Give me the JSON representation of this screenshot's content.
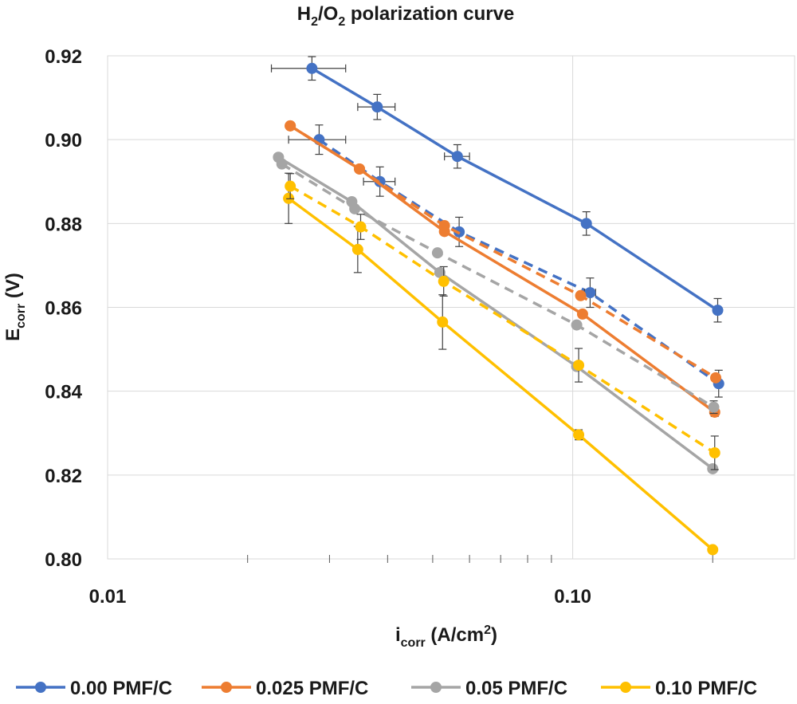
{
  "chart_data": {
    "type": "scatter",
    "title_main": "H",
    "title_sub1": "2",
    "title_mid": "/O",
    "title_sub2": "2",
    "title_rest": " polarization curve",
    "xlabel_main": "i",
    "xlabel_sub": "corr",
    "xlabel_rest": " (A/cm",
    "xlabel_sup": "2",
    "xlabel_end": ")",
    "ylabel_main": "E",
    "ylabel_sub": "corr",
    "ylabel_rest": " (V)",
    "x_scale": "log",
    "xlim": [
      0.01,
      0.3
    ],
    "ylim": [
      0.8,
      0.92
    ],
    "x_ticks": [
      {
        "value": 0.01,
        "label": "0.01"
      },
      {
        "value": 0.1,
        "label": "0.10"
      }
    ],
    "y_ticks": [
      {
        "value": 0.8,
        "label": "0.80"
      },
      {
        "value": 0.82,
        "label": "0.82"
      },
      {
        "value": 0.84,
        "label": "0.84"
      },
      {
        "value": 0.86,
        "label": "0.86"
      },
      {
        "value": 0.88,
        "label": "0.88"
      },
      {
        "value": 0.9,
        "label": "0.90"
      },
      {
        "value": 0.92,
        "label": "0.92"
      }
    ],
    "grid": "major",
    "legend_position": "bottom",
    "series": [
      {
        "name": "0.00 PMF/C",
        "color": "#4472C4",
        "style": "solid",
        "points": [
          {
            "x": 0.0275,
            "y": 0.917,
            "xerr": 0.005,
            "yerr": 0.0028
          },
          {
            "x": 0.038,
            "y": 0.9078,
            "xerr": 0.0035,
            "yerr": 0.003
          },
          {
            "x": 0.0565,
            "y": 0.896,
            "xerr": 0.0035,
            "yerr": 0.0028
          },
          {
            "x": 0.107,
            "y": 0.88,
            "xerr": 0,
            "yerr": 0.0028
          },
          {
            "x": 0.205,
            "y": 0.8593,
            "xerr": 0,
            "yerr": 0.0028
          }
        ]
      },
      {
        "name": "0.00 PMF/C",
        "color": "#4472C4",
        "style": "dashed",
        "points": [
          {
            "x": 0.0285,
            "y": 0.9,
            "xerr": 0.004,
            "yerr": 0.0035
          },
          {
            "x": 0.0385,
            "y": 0.89,
            "xerr": 0.003,
            "yerr": 0.0035
          },
          {
            "x": 0.057,
            "y": 0.878,
            "xerr": 0,
            "yerr": 0.0035
          },
          {
            "x": 0.109,
            "y": 0.8635,
            "xerr": 0.003,
            "yerr": 0.0035
          },
          {
            "x": 0.206,
            "y": 0.8418,
            "xerr": 0,
            "yerr": 0.0032
          }
        ]
      },
      {
        "name": "0.025 PMF/C",
        "color": "#ED7D31",
        "style": "solid",
        "points": [
          {
            "x": 0.0247,
            "y": 0.9033,
            "xerr": 0,
            "yerr": 0.0008
          },
          {
            "x": 0.0348,
            "y": 0.893,
            "xerr": 0,
            "yerr": 0
          },
          {
            "x": 0.053,
            "y": 0.8781,
            "xerr": 0,
            "yerr": 0
          },
          {
            "x": 0.105,
            "y": 0.8584,
            "xerr": 0,
            "yerr": 0
          },
          {
            "x": 0.202,
            "y": 0.835,
            "xerr": 0,
            "yerr": 0.001
          }
        ]
      },
      {
        "name": "0.025 PMF/C",
        "color": "#ED7D31",
        "style": "dashed",
        "points": [
          {
            "x": 0.0247,
            "y": 0.9033,
            "xerr": 0,
            "yerr": 0
          },
          {
            "x": 0.0348,
            "y": 0.893,
            "xerr": 0,
            "yerr": 0
          },
          {
            "x": 0.053,
            "y": 0.8795,
            "xerr": 0,
            "yerr": 0
          },
          {
            "x": 0.104,
            "y": 0.8628,
            "xerr": 0,
            "yerr": 0
          },
          {
            "x": 0.203,
            "y": 0.8432,
            "xerr": 0,
            "yerr": 0
          }
        ]
      },
      {
        "name": "0.05 PMF/C",
        "color": "#A5A5A5",
        "style": "solid",
        "points": [
          {
            "x": 0.0233,
            "y": 0.8958,
            "xerr": 0,
            "yerr": 0
          },
          {
            "x": 0.0335,
            "y": 0.8852,
            "xerr": 0,
            "yerr": 0
          },
          {
            "x": 0.0518,
            "y": 0.8683,
            "xerr": 0,
            "yerr": 0
          },
          {
            "x": 0.102,
            "y": 0.8459,
            "xerr": 0,
            "yerr": 0
          },
          {
            "x": 0.2,
            "y": 0.8215,
            "xerr": 0,
            "yerr": 0
          }
        ]
      },
      {
        "name": "0.05 PMF/C",
        "color": "#A5A5A5",
        "style": "dashed",
        "points": [
          {
            "x": 0.0237,
            "y": 0.8942,
            "xerr": 0,
            "yerr": 0
          },
          {
            "x": 0.034,
            "y": 0.8835,
            "xerr": 0,
            "yerr": 0
          },
          {
            "x": 0.0512,
            "y": 0.873,
            "xerr": 0,
            "yerr": 0
          },
          {
            "x": 0.102,
            "y": 0.8558,
            "xerr": 0,
            "yerr": 0
          },
          {
            "x": 0.201,
            "y": 0.8362,
            "xerr": 0,
            "yerr": 0.0015
          }
        ]
      },
      {
        "name": "0.10 PMF/C",
        "color": "#FFC000",
        "style": "solid",
        "points": [
          {
            "x": 0.0245,
            "y": 0.886,
            "xerr": 0,
            "yerr": 0.006
          },
          {
            "x": 0.0345,
            "y": 0.8738,
            "xerr": 0,
            "yerr": 0.0055
          },
          {
            "x": 0.0525,
            "y": 0.8565,
            "xerr": 0,
            "yerr": 0.0065
          },
          {
            "x": 0.103,
            "y": 0.8296,
            "xerr": 0,
            "yerr": 0.0012
          },
          {
            "x": 0.2,
            "y": 0.8022,
            "xerr": 0,
            "yerr": 0
          }
        ]
      },
      {
        "name": "0.10 PMF/C",
        "color": "#FFC000",
        "style": "dashed",
        "points": [
          {
            "x": 0.0247,
            "y": 0.8889,
            "xerr": 0,
            "yerr": 0.003
          },
          {
            "x": 0.035,
            "y": 0.8792,
            "xerr": 0,
            "yerr": 0.003
          },
          {
            "x": 0.0528,
            "y": 0.8662,
            "xerr": 0,
            "yerr": 0.0035
          },
          {
            "x": 0.103,
            "y": 0.8462,
            "xerr": 0,
            "yerr": 0.004
          },
          {
            "x": 0.202,
            "y": 0.8253,
            "xerr": 0,
            "yerr": 0.004
          }
        ]
      }
    ],
    "legend": [
      {
        "label": "0.00 PMF/C",
        "color": "#4472C4"
      },
      {
        "label": "0.025 PMF/C",
        "color": "#ED7D31"
      },
      {
        "label": "0.05 PMF/C",
        "color": "#A5A5A5"
      },
      {
        "label": "0.10 PMF/C",
        "color": "#FFC000"
      }
    ]
  }
}
